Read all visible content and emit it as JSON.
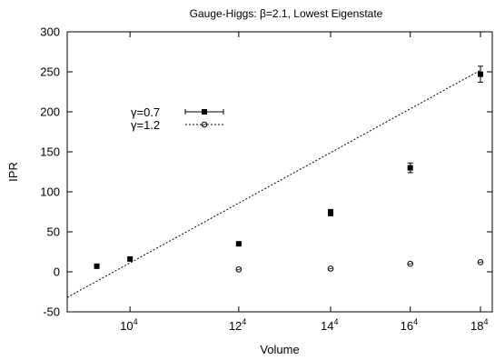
{
  "chart_data": {
    "type": "scatter",
    "title": "Gauge-Higgs: β=2.1, Lowest Eigenstate",
    "xlabel": "Volume",
    "ylabel": "IPR",
    "x_scale": "log",
    "xlim": [
      6561,
      104976
    ],
    "ylim": [
      -50,
      300
    ],
    "grid": false,
    "legend_position": "upper-left",
    "x_ticks": [
      {
        "value": 10000,
        "base": "10",
        "exp": "4"
      },
      {
        "value": 20736,
        "base": "12",
        "exp": "4"
      },
      {
        "value": 38416,
        "base": "14",
        "exp": "4"
      },
      {
        "value": 65536,
        "base": "16",
        "exp": "4"
      },
      {
        "value": 104976,
        "base": "18",
        "exp": "4"
      }
    ],
    "y_ticks": [
      "-50",
      "0",
      "50",
      "100",
      "150",
      "200",
      "250",
      "300"
    ],
    "series": [
      {
        "name": "γ=0.7",
        "marker": "filled-square",
        "color": "#000000",
        "points": [
          {
            "x": 8000,
            "y": 7,
            "err": 0
          },
          {
            "x": 10000,
            "y": 16,
            "err": 0
          },
          {
            "x": 20736,
            "y": 35,
            "err": 1.5
          },
          {
            "x": 38416,
            "y": 74,
            "err": 4
          },
          {
            "x": 65536,
            "y": 130,
            "err": 6
          },
          {
            "x": 104976,
            "y": 247,
            "err": 10
          }
        ]
      },
      {
        "name": "γ=1.2",
        "marker": "open-circle",
        "color": "#000000",
        "points": [
          {
            "x": 20736,
            "y": 3,
            "err": 0
          },
          {
            "x": 38416,
            "y": 4,
            "err": 0
          },
          {
            "x": 65536,
            "y": 10,
            "err": 0
          },
          {
            "x": 104976,
            "y": 12,
            "err": 0
          }
        ]
      }
    ],
    "fit_line": {
      "style": "dashed",
      "color": "#000000",
      "points": [
        {
          "x": 6561,
          "y": -32
        },
        {
          "x": 104976,
          "y": 252
        }
      ]
    }
  }
}
